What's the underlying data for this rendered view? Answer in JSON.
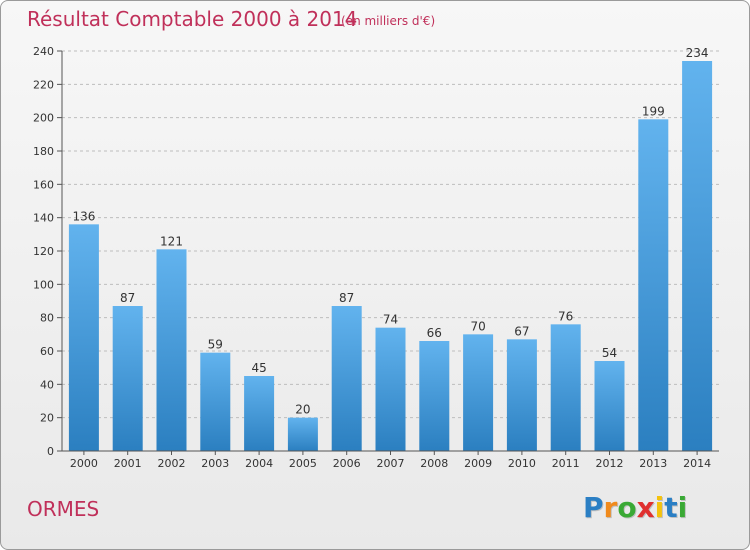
{
  "title": "Résultat Comptable 2000 à 2014",
  "subtitle": "(en milliers d'€)",
  "commune": "ORMES",
  "brand": {
    "letters": [
      "P",
      "r",
      "o",
      "x",
      "i",
      "t",
      "i"
    ],
    "colors": [
      "#2b7fc4",
      "#f08a1c",
      "#3aa935",
      "#e0302f",
      "#f4c20d",
      "#2b7fc4",
      "#3aa935"
    ]
  },
  "colors": {
    "bar_top": "#62b3ee",
    "bar_bottom": "#2b7fc0",
    "grid": "#bdbdbd",
    "axis": "#555555",
    "accent": "#c0305a"
  },
  "chart_data": {
    "type": "bar",
    "categories": [
      "2000",
      "2001",
      "2002",
      "2003",
      "2004",
      "2005",
      "2006",
      "2007",
      "2008",
      "2009",
      "2010",
      "2011",
      "2012",
      "2013",
      "2014"
    ],
    "values": [
      136,
      87,
      121,
      59,
      45,
      20,
      87,
      74,
      66,
      70,
      67,
      76,
      54,
      199,
      234
    ],
    "ylim": [
      0,
      240
    ],
    "yticks": [
      0,
      20,
      40,
      60,
      80,
      100,
      120,
      140,
      160,
      180,
      200,
      220,
      240
    ],
    "grid": true,
    "data_labels": true
  }
}
